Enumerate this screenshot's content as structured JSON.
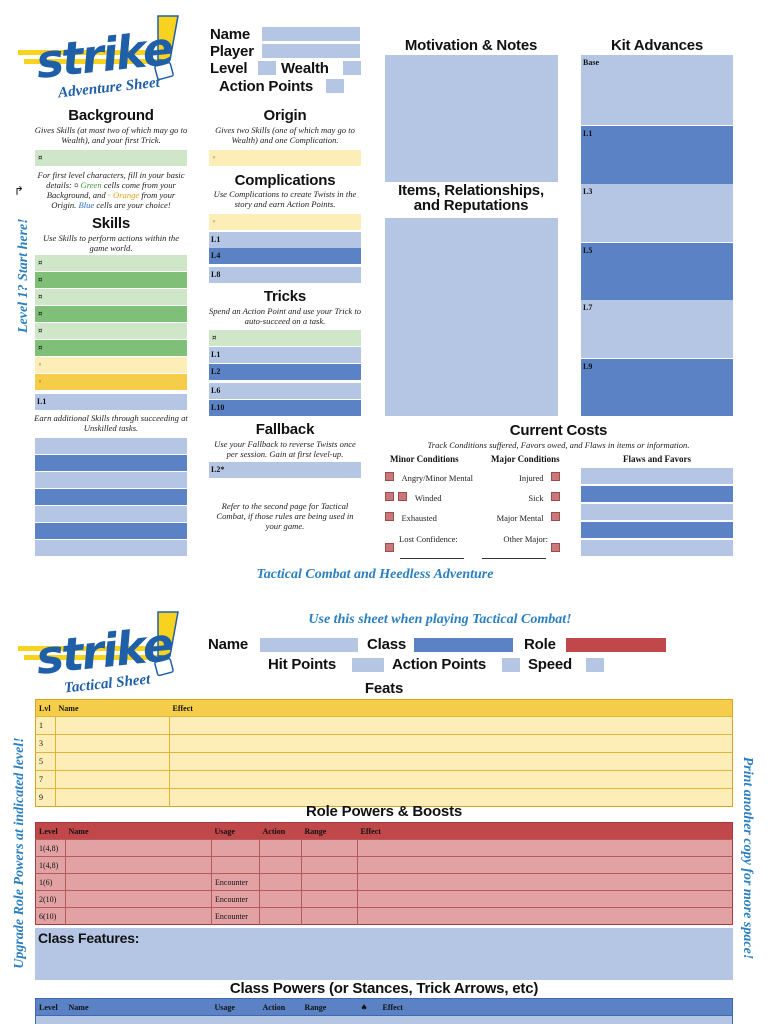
{
  "logo": {
    "word": "strike",
    "mark": "!",
    "subtitle_top": "Adventure Sheet",
    "subtitle_bottom": "Tactical Sheet"
  },
  "identity": {
    "name": "Name",
    "player": "Player",
    "level": "Level",
    "wealth": "Wealth",
    "action_points": "Action Points"
  },
  "background": {
    "title": "Background",
    "desc": "Gives Skills (at most two of which may go to Wealth), and your first Trick.",
    "symbol": "¤",
    "note_parts": [
      "For first level characters, fill in your basic details: ¤ ",
      "Green",
      " cells come from your Background, and ",
      "◦ Orange",
      " from your Origin. ",
      "Blue",
      " cells are your choice!"
    ]
  },
  "origin": {
    "title": "Origin",
    "desc": "Gives two Skills (one of which may go to Wealth) and one Complication.",
    "symbol": "◦"
  },
  "complications": {
    "title": "Complications",
    "desc": "Use Complications to create Twists in the story and earn Action Points.",
    "symbol": "◦",
    "levels": [
      "L1",
      "L4",
      "L8"
    ]
  },
  "skills": {
    "title": "Skills",
    "desc": "Use Skills to perform actions within the game world.",
    "symbols": [
      "¤",
      "¤",
      "¤",
      "¤",
      "¤",
      "¤",
      "◦",
      "◦"
    ],
    "level": "L1",
    "note": "Earn additional Skills through succeeding at Unskilled tasks."
  },
  "tricks": {
    "title": "Tricks",
    "desc": "Spend an Action Point and use your Trick to auto-succeed on a task.",
    "symbol": "¤",
    "levels": [
      "L1",
      "L2",
      "L6",
      "L10"
    ]
  },
  "fallback": {
    "title": "Fallback",
    "desc": "Use your Fallback to reverse Twists once per session. Gain at first level-up.",
    "level": "L2*",
    "note": "Refer to the second page for Tactical Combat, if those rules are being used in your game."
  },
  "motivation": {
    "title": "Motivation & Notes"
  },
  "items": {
    "title_line1": "Items, Relationships,",
    "title_line2": "and Reputations"
  },
  "kit": {
    "title": "Kit Advances",
    "levels": [
      "Base",
      "L1",
      "L3",
      "L5",
      "L7",
      "L9"
    ]
  },
  "costs": {
    "title": "Current Costs",
    "desc": "Track Conditions suffered, Favors owed, and Flaws in items or information.",
    "minor_header": "Minor Conditions",
    "major_header": "Major Conditions",
    "flaws_header": "Flaws and Favors",
    "minor": [
      "Angry/Minor Mental",
      "Winded",
      "Exhausted",
      "Lost Confidence:"
    ],
    "major": [
      "Injured",
      "Sick",
      "Major Mental",
      "Other Major:"
    ]
  },
  "side_left_top": "Level 1? Start here!",
  "banner": "Tactical Combat and Heedless Adventure",
  "tactical": {
    "banner": "Use this sheet when playing Tactical Combat!",
    "name": "Name",
    "class": "Class",
    "role": "Role",
    "hit_points": "Hit Points",
    "action_points": "Action Points",
    "speed": "Speed",
    "feats_title": "Feats",
    "feats_headers": [
      "Lvl",
      "Name",
      "Effect"
    ],
    "feats_levels": [
      "1",
      "3",
      "5",
      "7",
      "9"
    ],
    "role_title": "Role Powers & Boosts",
    "role_headers": [
      "Level",
      "Name",
      "Usage",
      "Action",
      "Range",
      "Effect"
    ],
    "role_rows": [
      [
        "1(4,8)",
        ""
      ],
      [
        "1(4,8)",
        ""
      ],
      [
        "1(6)",
        "Encounter"
      ],
      [
        "2(10)",
        "Encounter"
      ],
      [
        "6(10)",
        "Encounter"
      ]
    ],
    "class_features": "Class Features:",
    "class_title": "Class Powers (or Stances, Trick Arrows, etc)",
    "class_headers": [
      "Level",
      "Name",
      "Usage",
      "Action",
      "Range",
      "♠",
      "Effect"
    ],
    "side_left": "Upgrade  Role Powers at indicated level!",
    "side_right": "Print another copy for more space!"
  },
  "colors": {
    "light_blue": "#b4c6e4",
    "dark_blue": "#5a82c5",
    "gold": "#f5cd4a",
    "red": "#c0484a",
    "logo_blue": "#1f5fa8",
    "logo_yellow": "#f7d21e"
  }
}
